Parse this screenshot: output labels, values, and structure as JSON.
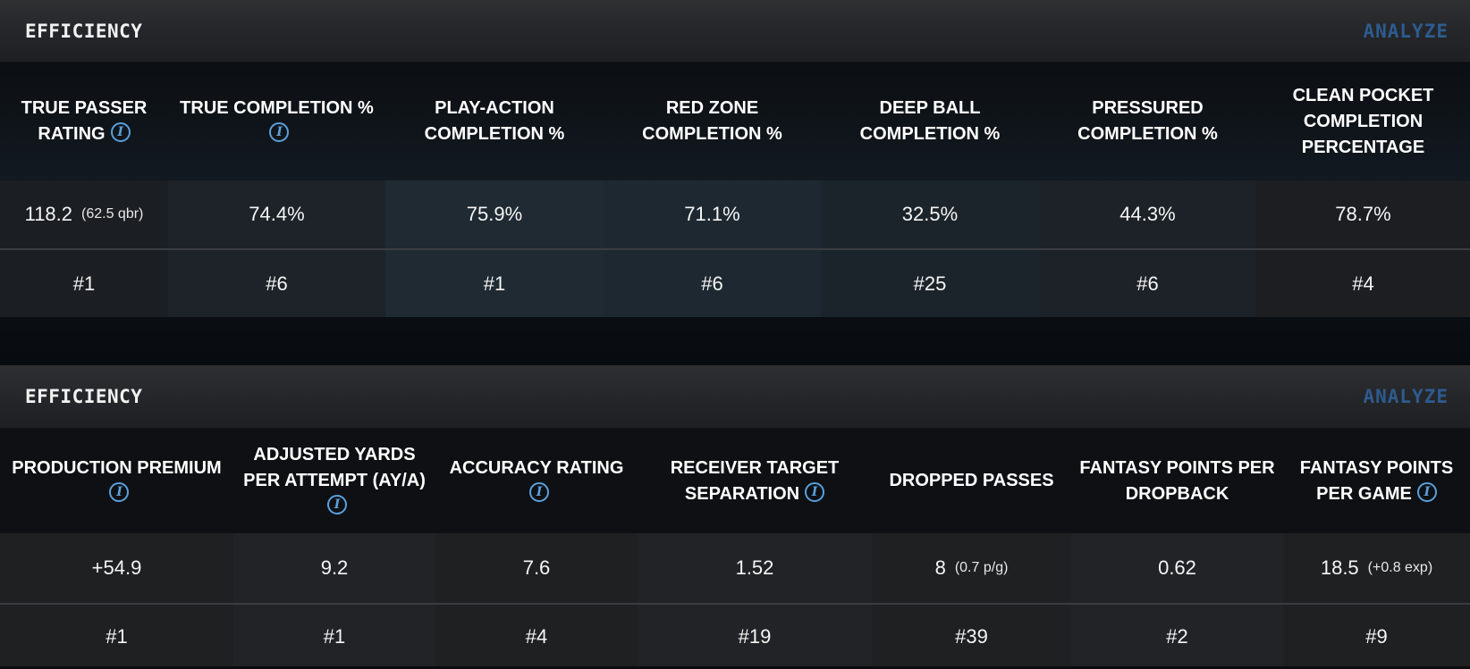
{
  "panels": [
    {
      "title": "EFFICIENCY",
      "analyze_label": "ANALYZE",
      "columns": [
        {
          "header": "TRUE PASSER RATING",
          "info": true,
          "value": "118.2",
          "sub": "(62.5 qbr)",
          "rank": "#1"
        },
        {
          "header": "TRUE COMPLETION %",
          "info": true,
          "value": "74.4%",
          "sub": "",
          "rank": "#6"
        },
        {
          "header": "PLAY-ACTION COMPLETION %",
          "info": false,
          "value": "75.9%",
          "sub": "",
          "rank": "#1"
        },
        {
          "header": "RED ZONE COMPLETION %",
          "info": false,
          "value": "71.1%",
          "sub": "",
          "rank": "#6"
        },
        {
          "header": "DEEP BALL COMPLETION %",
          "info": false,
          "value": "32.5%",
          "sub": "",
          "rank": "#25"
        },
        {
          "header": "PRESSURED COMPLETION %",
          "info": false,
          "value": "44.3%",
          "sub": "",
          "rank": "#6"
        },
        {
          "header": "CLEAN POCKET COMPLETION PERCENTAGE",
          "info": false,
          "value": "78.7%",
          "sub": "",
          "rank": "#4"
        }
      ]
    },
    {
      "title": "EFFICIENCY",
      "analyze_label": "ANALYZE",
      "columns": [
        {
          "header": "PRODUCTION PREMIUM",
          "info": true,
          "value": "+54.9",
          "sub": "",
          "rank": "#1"
        },
        {
          "header": "ADJUSTED YARDS PER ATTEMPT (AY/A)",
          "info": true,
          "value": "9.2",
          "sub": "",
          "rank": "#1"
        },
        {
          "header": "ACCURACY RATING",
          "info": true,
          "value": "7.6",
          "sub": "",
          "rank": "#4"
        },
        {
          "header": "RECEIVER TARGET SEPARATION",
          "info": true,
          "value": "1.52",
          "sub": "",
          "rank": "#19"
        },
        {
          "header": "DROPPED PASSES",
          "info": false,
          "value": "8",
          "sub": "(0.7 p/g)",
          "rank": "#39"
        },
        {
          "header": "FANTASY POINTS PER DROPBACK",
          "info": false,
          "value": "0.62",
          "sub": "",
          "rank": "#2"
        },
        {
          "header": "FANTASY POINTS PER GAME",
          "info": true,
          "value": "18.5",
          "sub": "(+0.8 exp)",
          "rank": "#9"
        }
      ]
    }
  ],
  "icons": {
    "info": "info-icon",
    "info_glyph": "i"
  },
  "colors": {
    "analyze": "#2d5b8f",
    "info": "#5aa0dc"
  }
}
